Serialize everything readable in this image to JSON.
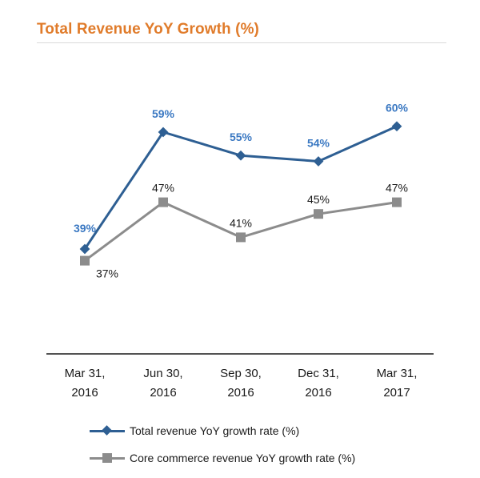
{
  "chart_data": {
    "type": "line",
    "title": "Total Revenue YoY Growth  (%)",
    "categories": [
      [
        "Mar 31,",
        "2016"
      ],
      [
        "Jun 30,",
        "2016"
      ],
      [
        "Sep 30,",
        "2016"
      ],
      [
        "Dec 31,",
        "2016"
      ],
      [
        "Mar 31,",
        "2017"
      ]
    ],
    "xlabel": "",
    "ylabel": "",
    "ylim": [
      30,
      65
    ],
    "grid": false,
    "legend_position": "bottom",
    "series": [
      {
        "name": "Total revenue YoY growth rate (%)",
        "values": [
          39,
          59,
          55,
          54,
          60
        ],
        "labels": [
          "39%",
          "59%",
          "55%",
          "54%",
          "60%"
        ],
        "color": "#2e5f93",
        "label_color": "#3a78c2",
        "marker": "diamond"
      },
      {
        "name": "Core commerce revenue YoY growth rate (%)",
        "values": [
          37,
          47,
          41,
          45,
          47
        ],
        "labels": [
          "37%",
          "47%",
          "41%",
          "45%",
          "47%"
        ],
        "color": "#8c8c8c",
        "label_color": "#1a1a1a",
        "marker": "square"
      }
    ]
  }
}
